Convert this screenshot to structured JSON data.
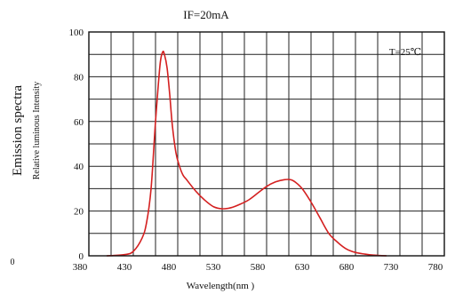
{
  "chart_data": {
    "type": "line",
    "title": "IF=20mA",
    "annotation": "T=25℃",
    "xlabel": "Wavelength(nm )",
    "ylabel_line1": "Emission spectra",
    "ylabel_line2": "Relative luminous Intensity",
    "xlim": [
      380,
      780
    ],
    "ylim": [
      0,
      100
    ],
    "x_ticks": [
      "380",
      "430",
      "480",
      "530",
      "580",
      "630",
      "680",
      "730",
      "780"
    ],
    "y_ticks": [
      "0",
      "20",
      "40",
      "60",
      "80",
      "100"
    ],
    "origin_label": "0",
    "grid": true,
    "grid_x_step": 25,
    "grid_y_step": 10,
    "series": [
      {
        "color": "#d42020",
        "x": [
          400,
          420,
          430,
          440,
          445,
          450,
          455,
          460,
          463,
          465,
          468,
          471,
          474,
          478,
          482,
          486,
          490,
          500,
          510,
          520,
          530,
          540,
          550,
          560,
          570,
          580,
          590,
          600,
          607,
          612,
          620,
          630,
          640,
          650,
          660,
          670,
          680,
          690,
          700,
          715
        ],
        "y": [
          0,
          0.5,
          2,
          8,
          15,
          30,
          60,
          85,
          91,
          90,
          84,
          72,
          58,
          46,
          40,
          36,
          34,
          29,
          25,
          22,
          21,
          21.5,
          23,
          25,
          28,
          31,
          33,
          34,
          34,
          33,
          30,
          24,
          17,
          10,
          6,
          3,
          1.5,
          0.8,
          0.3,
          0
        ]
      }
    ]
  }
}
